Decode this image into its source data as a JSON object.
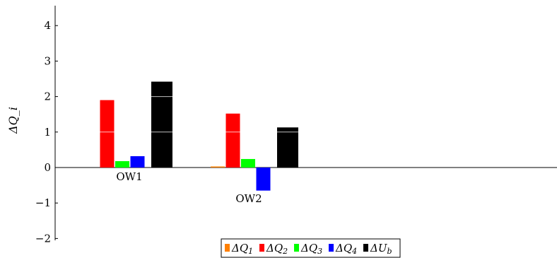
{
  "chart_data": {
    "type": "bar",
    "title": "",
    "xlabel": "",
    "ylabel": "ΔQ_i",
    "ylim": [
      -2,
      4.6
    ],
    "yticks": [
      -2,
      -1,
      0,
      1,
      2,
      3,
      4
    ],
    "grid": false,
    "legend_position": "bottom-center",
    "categories": [
      "OW1",
      "OW2"
    ],
    "series": [
      {
        "name": "ΔQ_1",
        "color": "#ff8000",
        "values": [
          0.0,
          0.03
        ]
      },
      {
        "name": "ΔQ_2",
        "color": "#ff0000",
        "values": [
          1.9,
          1.52
        ]
      },
      {
        "name": "ΔQ_3",
        "color": "#00ff00",
        "values": [
          0.18,
          0.24
        ]
      },
      {
        "name": "ΔQ_4",
        "color": "#0000ff",
        "values": [
          0.32,
          -0.65
        ]
      },
      {
        "name": "ΔU_b",
        "color": "#000000",
        "values": [
          2.42,
          1.13
        ]
      }
    ]
  }
}
